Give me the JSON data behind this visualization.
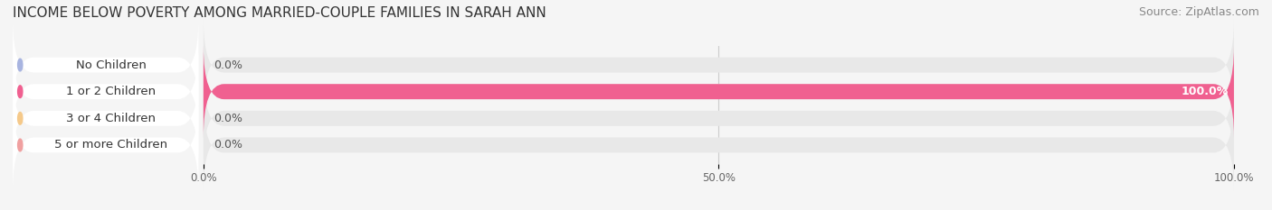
{
  "title": "INCOME BELOW POVERTY AMONG MARRIED-COUPLE FAMILIES IN SARAH ANN",
  "source": "Source: ZipAtlas.com",
  "categories": [
    "No Children",
    "1 or 2 Children",
    "3 or 4 Children",
    "5 or more Children"
  ],
  "values": [
    0.0,
    100.0,
    0.0,
    0.0
  ],
  "bar_colors": [
    "#a8b4e0",
    "#f06090",
    "#f5c98a",
    "#f0a0a0"
  ],
  "label_colors": [
    "#a8b4e0",
    "#f06090",
    "#f5c98a",
    "#f0a0a0"
  ],
  "xlim": [
    0,
    100
  ],
  "xticks": [
    0,
    50,
    100
  ],
  "xtick_labels": [
    "0.0%",
    "50.0%",
    "100.0%"
  ],
  "background_color": "#f5f5f5",
  "bar_background": "#e8e8e8",
  "title_fontsize": 11,
  "source_fontsize": 9,
  "label_fontsize": 9.5,
  "value_fontsize": 9
}
